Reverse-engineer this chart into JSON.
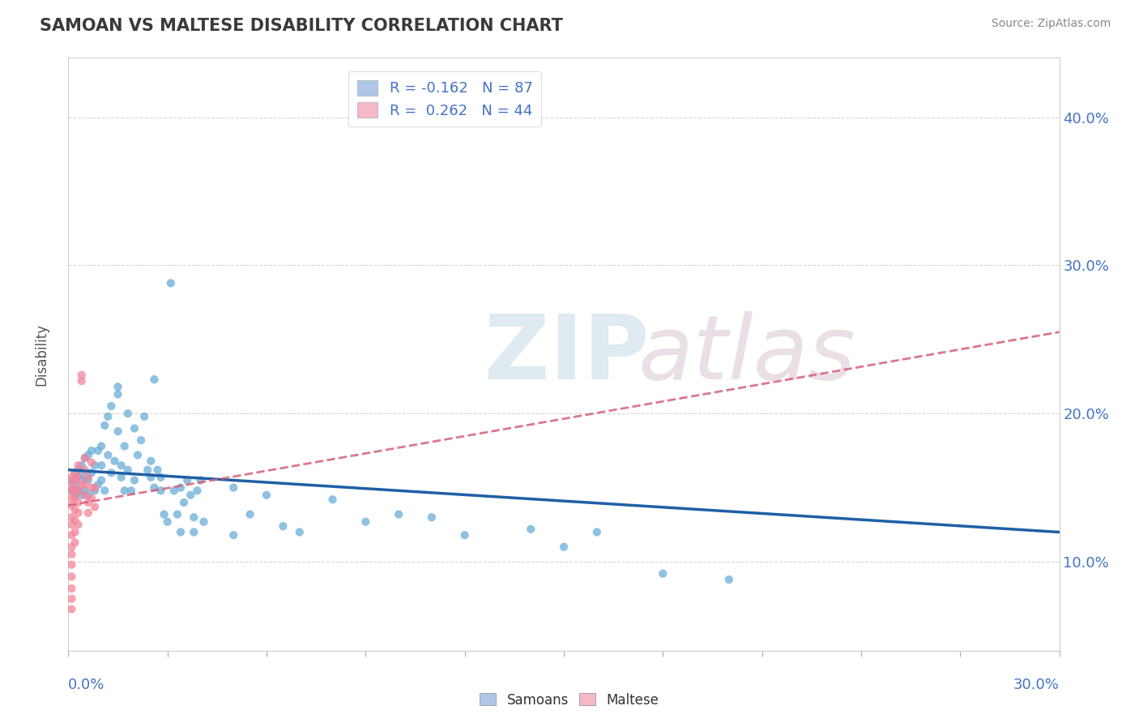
{
  "title": "SAMOAN VS MALTESE DISABILITY CORRELATION CHART",
  "source": "Source: ZipAtlas.com",
  "ylabel": "Disability",
  "xlim": [
    0.0,
    0.3
  ],
  "ylim": [
    0.04,
    0.44
  ],
  "legend_entries": [
    {
      "label": "R = -0.162   N = 87",
      "color": "#aec6e8"
    },
    {
      "label": "R =  0.262   N = 44",
      "color": "#f4b8c8"
    }
  ],
  "samoan_color": "#6aaed6",
  "maltese_color": "#f4859a",
  "samoan_line_color": "#1f5fa6",
  "maltese_line_color": "#d4607a",
  "samoans_scatter": [
    [
      0.001,
      0.155
    ],
    [
      0.001,
      0.148
    ],
    [
      0.002,
      0.152
    ],
    [
      0.002,
      0.145
    ],
    [
      0.002,
      0.16
    ],
    [
      0.003,
      0.158
    ],
    [
      0.003,
      0.148
    ],
    [
      0.003,
      0.162
    ],
    [
      0.004,
      0.155
    ],
    [
      0.004,
      0.165
    ],
    [
      0.004,
      0.145
    ],
    [
      0.005,
      0.17
    ],
    [
      0.005,
      0.148
    ],
    [
      0.005,
      0.158
    ],
    [
      0.006,
      0.172
    ],
    [
      0.006,
      0.155
    ],
    [
      0.006,
      0.145
    ],
    [
      0.007,
      0.175
    ],
    [
      0.007,
      0.16
    ],
    [
      0.008,
      0.148
    ],
    [
      0.008,
      0.165
    ],
    [
      0.009,
      0.152
    ],
    [
      0.009,
      0.175
    ],
    [
      0.01,
      0.178
    ],
    [
      0.01,
      0.155
    ],
    [
      0.01,
      0.165
    ],
    [
      0.011,
      0.148
    ],
    [
      0.011,
      0.192
    ],
    [
      0.012,
      0.198
    ],
    [
      0.012,
      0.172
    ],
    [
      0.013,
      0.205
    ],
    [
      0.013,
      0.16
    ],
    [
      0.014,
      0.168
    ],
    [
      0.015,
      0.213
    ],
    [
      0.015,
      0.218
    ],
    [
      0.015,
      0.188
    ],
    [
      0.016,
      0.165
    ],
    [
      0.016,
      0.157
    ],
    [
      0.017,
      0.178
    ],
    [
      0.017,
      0.148
    ],
    [
      0.018,
      0.162
    ],
    [
      0.018,
      0.2
    ],
    [
      0.019,
      0.148
    ],
    [
      0.02,
      0.19
    ],
    [
      0.02,
      0.155
    ],
    [
      0.021,
      0.172
    ],
    [
      0.022,
      0.182
    ],
    [
      0.023,
      0.198
    ],
    [
      0.024,
      0.162
    ],
    [
      0.025,
      0.157
    ],
    [
      0.025,
      0.168
    ],
    [
      0.026,
      0.15
    ],
    [
      0.026,
      0.223
    ],
    [
      0.027,
      0.162
    ],
    [
      0.028,
      0.148
    ],
    [
      0.028,
      0.157
    ],
    [
      0.029,
      0.132
    ],
    [
      0.03,
      0.127
    ],
    [
      0.031,
      0.288
    ],
    [
      0.032,
      0.148
    ],
    [
      0.033,
      0.132
    ],
    [
      0.034,
      0.15
    ],
    [
      0.034,
      0.12
    ],
    [
      0.035,
      0.14
    ],
    [
      0.036,
      0.155
    ],
    [
      0.037,
      0.145
    ],
    [
      0.038,
      0.13
    ],
    [
      0.038,
      0.12
    ],
    [
      0.039,
      0.148
    ],
    [
      0.04,
      0.155
    ],
    [
      0.041,
      0.127
    ],
    [
      0.05,
      0.15
    ],
    [
      0.05,
      0.118
    ],
    [
      0.055,
      0.132
    ],
    [
      0.06,
      0.145
    ],
    [
      0.065,
      0.124
    ],
    [
      0.07,
      0.12
    ],
    [
      0.08,
      0.142
    ],
    [
      0.09,
      0.127
    ],
    [
      0.1,
      0.132
    ],
    [
      0.11,
      0.13
    ],
    [
      0.12,
      0.118
    ],
    [
      0.14,
      0.122
    ],
    [
      0.15,
      0.11
    ],
    [
      0.16,
      0.12
    ],
    [
      0.18,
      0.092
    ],
    [
      0.2,
      0.088
    ]
  ],
  "maltese_scatter": [
    [
      0.001,
      0.148
    ],
    [
      0.001,
      0.152
    ],
    [
      0.001,
      0.143
    ],
    [
      0.001,
      0.157
    ],
    [
      0.001,
      0.138
    ],
    [
      0.001,
      0.13
    ],
    [
      0.001,
      0.125
    ],
    [
      0.001,
      0.118
    ],
    [
      0.001,
      0.11
    ],
    [
      0.001,
      0.105
    ],
    [
      0.001,
      0.098
    ],
    [
      0.001,
      0.09
    ],
    [
      0.001,
      0.082
    ],
    [
      0.001,
      0.075
    ],
    [
      0.001,
      0.068
    ],
    [
      0.002,
      0.155
    ],
    [
      0.002,
      0.148
    ],
    [
      0.002,
      0.16
    ],
    [
      0.002,
      0.143
    ],
    [
      0.002,
      0.135
    ],
    [
      0.002,
      0.128
    ],
    [
      0.002,
      0.12
    ],
    [
      0.002,
      0.113
    ],
    [
      0.003,
      0.148
    ],
    [
      0.003,
      0.157
    ],
    [
      0.003,
      0.165
    ],
    [
      0.003,
      0.14
    ],
    [
      0.003,
      0.133
    ],
    [
      0.003,
      0.125
    ],
    [
      0.004,
      0.152
    ],
    [
      0.004,
      0.222
    ],
    [
      0.004,
      0.226
    ],
    [
      0.005,
      0.152
    ],
    [
      0.005,
      0.162
    ],
    [
      0.005,
      0.17
    ],
    [
      0.005,
      0.145
    ],
    [
      0.006,
      0.14
    ],
    [
      0.006,
      0.133
    ],
    [
      0.006,
      0.157
    ],
    [
      0.007,
      0.15
    ],
    [
      0.007,
      0.167
    ],
    [
      0.007,
      0.143
    ],
    [
      0.008,
      0.15
    ],
    [
      0.008,
      0.137
    ]
  ],
  "background_color": "#ffffff",
  "grid_color": "#cccccc"
}
